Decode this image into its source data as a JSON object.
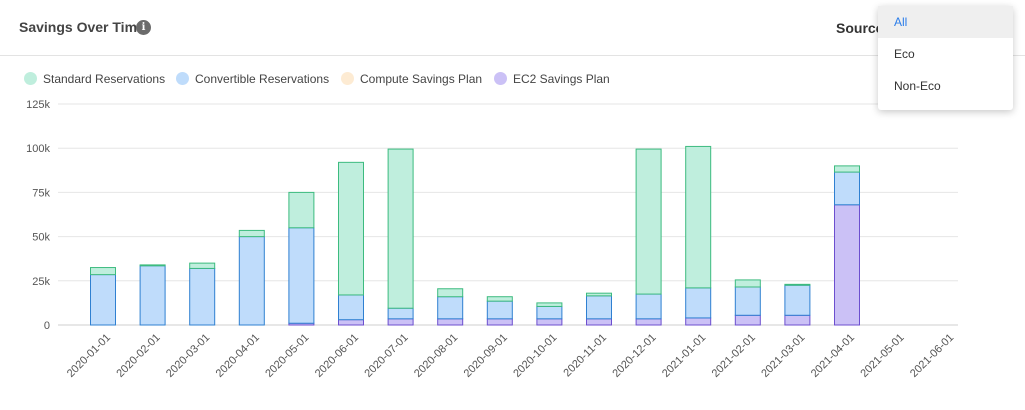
{
  "header": {
    "title": "Savings Over Time",
    "info_icon": "info-icon",
    "source_label": "Source"
  },
  "dropdown": {
    "options": [
      "All",
      "Eco",
      "Non-Eco"
    ],
    "selected": "All"
  },
  "legend": [
    {
      "label": "Standard Reservations",
      "color": "#bfeedd",
      "border": "#3dbb7f"
    },
    {
      "label": "Convertible Reservations",
      "color": "#bfdcfb",
      "border": "#2f80d1"
    },
    {
      "label": "Compute Savings Plan",
      "color": "#fdebd3",
      "border": "#e9b870"
    },
    {
      "label": "EC2 Savings Plan",
      "color": "#cbc1f6",
      "border": "#6c4fcf"
    }
  ],
  "chart_data": {
    "type": "bar",
    "stacked": true,
    "categories": [
      "2020-01-01",
      "2020-02-01",
      "2020-03-01",
      "2020-04-01",
      "2020-05-01",
      "2020-06-01",
      "2020-07-01",
      "2020-08-01",
      "2020-09-01",
      "2020-10-01",
      "2020-11-01",
      "2020-12-01",
      "2021-01-01",
      "2021-02-01",
      "2021-03-01",
      "2021-04-01",
      "2021-05-01",
      "2021-06-01"
    ],
    "series": [
      {
        "name": "EC2 Savings Plan",
        "values": [
          0,
          0,
          0,
          0,
          1000,
          3000,
          3500,
          3500,
          3500,
          3500,
          3500,
          3500,
          4000,
          5500,
          5500,
          68000,
          0,
          0
        ]
      },
      {
        "name": "Compute Savings Plan",
        "values": [
          0,
          0,
          0,
          0,
          0,
          0,
          0,
          0,
          0,
          0,
          0,
          0,
          0,
          0,
          0,
          0,
          0,
          0
        ]
      },
      {
        "name": "Convertible Reservations",
        "values": [
          28500,
          33500,
          32000,
          50000,
          54000,
          14000,
          6000,
          12500,
          10000,
          7000,
          13000,
          14000,
          17000,
          16000,
          17000,
          18500,
          0,
          0
        ]
      },
      {
        "name": "Standard Reservations",
        "values": [
          4000,
          500,
          3000,
          3500,
          20000,
          75000,
          90000,
          4500,
          2500,
          2000,
          1500,
          82000,
          80000,
          4000,
          500,
          3500,
          0,
          0
        ]
      }
    ],
    "yticks": [
      "0",
      "25k",
      "50k",
      "75k",
      "100k",
      "125k"
    ],
    "ylim": [
      0,
      125000
    ],
    "grid": true,
    "legend_position": "top-left"
  }
}
